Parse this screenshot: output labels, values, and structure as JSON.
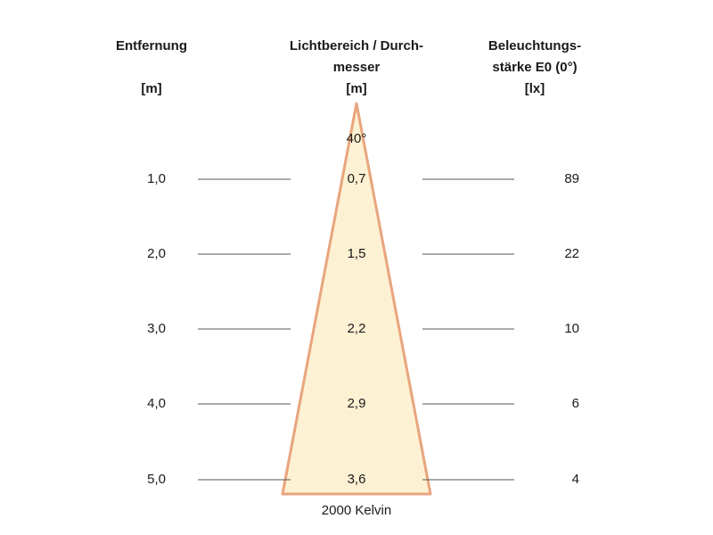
{
  "headers": {
    "distance": {
      "line1": "Entfernung",
      "line2": "",
      "unit": "[m]"
    },
    "beam": {
      "line1": "Lichtbereich / Durch-",
      "line2": "messer",
      "unit": "[m]"
    },
    "illuminance": {
      "line1": "Beleuchtungs-",
      "line2": "stärke E0 (0°)",
      "unit": "[lx]"
    }
  },
  "beam_angle": "40°",
  "color_temperature": "2000 Kelvin",
  "rows": [
    {
      "distance": "1,0",
      "diameter": "0,7",
      "illuminance": "89"
    },
    {
      "distance": "2,0",
      "diameter": "1,5",
      "illuminance": "22"
    },
    {
      "distance": "3,0",
      "diameter": "2,2",
      "illuminance": "10"
    },
    {
      "distance": "4,0",
      "diameter": "2,9",
      "illuminance": "6"
    },
    {
      "distance": "5,0",
      "diameter": "3,6",
      "illuminance": "4"
    }
  ],
  "colors": {
    "beam_fill": "#fdf1d3",
    "beam_edge": "#e8a57e",
    "line": "#555555"
  }
}
